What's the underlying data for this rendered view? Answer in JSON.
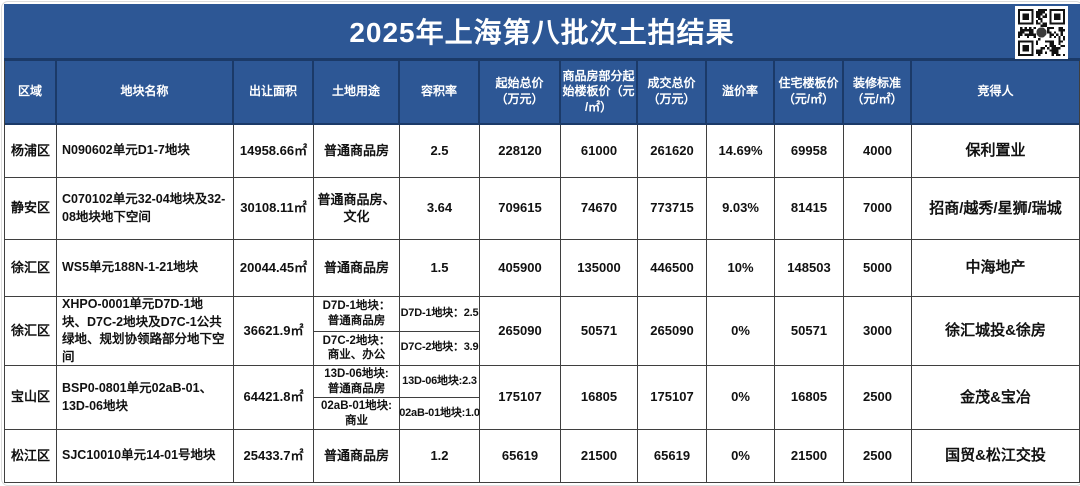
{
  "title": "2025年上海第八批次土拍结果",
  "colors": {
    "header_blue": "#2d5795",
    "divider_navy": "#1b3a68",
    "grid_gray": "#3f3f3f",
    "text_black": "#111111"
  },
  "table": {
    "columns": [
      {
        "label": "区域"
      },
      {
        "label": "地块名称"
      },
      {
        "label": "出让面积"
      },
      {
        "label": "土地用途"
      },
      {
        "label": "容积率"
      },
      {
        "label": "起始总价\n（万元）"
      },
      {
        "label": "商品房部分起\n始楼板价（元\n/㎡）"
      },
      {
        "label": "成交总价\n（万元）"
      },
      {
        "label": "溢价率"
      },
      {
        "label": "住宅楼板价\n（元/㎡）"
      },
      {
        "label": "装修标准\n（元/㎡）"
      },
      {
        "label": "竞得人"
      }
    ],
    "rows": [
      {
        "region": "杨浦区",
        "name": "N090602单元D1-7地块",
        "area": "14958.66㎡",
        "use": [
          "普通商品房"
        ],
        "far": [
          "2.5"
        ],
        "start_total": "228120",
        "start_floor": "61000",
        "deal_total": "261620",
        "premium": "14.69%",
        "res_floor": "69958",
        "decor": "4000",
        "winner": "保利置业"
      },
      {
        "region": "静安区",
        "name": "C070102单元32-04地块及32-08地块地下空间",
        "area": "30108.11㎡",
        "use": [
          "普通商品房、\n文化"
        ],
        "far": [
          "3.64"
        ],
        "start_total": "709615",
        "start_floor": "74670",
        "deal_total": "773715",
        "premium": "9.03%",
        "res_floor": "81415",
        "decor": "7000",
        "winner": "招商/越秀/星狮/瑞城"
      },
      {
        "region": "徐汇区",
        "name": "WS5单元188N-1-21地块",
        "area": "20044.45㎡",
        "use": [
          "普通商品房"
        ],
        "far": [
          "1.5"
        ],
        "start_total": "405900",
        "start_floor": "135000",
        "deal_total": "446500",
        "premium": "10%",
        "res_floor": "148503",
        "decor": "5000",
        "winner": "中海地产"
      },
      {
        "region": "徐汇区",
        "name": "XHPO-0001单元D7D-1地块、D7C-2地块及D7C-1公共绿地、规划协领路部分地下空间",
        "area": "36621.9㎡",
        "use": [
          "D7D-1地块：\n普通商品房",
          "D7C-2地块：\n商业、办公"
        ],
        "far": [
          "D7D-1地块：2.5",
          "D7C-2地块：3.9"
        ],
        "start_total": "265090",
        "start_floor": "50571",
        "deal_total": "265090",
        "premium": "0%",
        "res_floor": "50571",
        "decor": "3000",
        "winner": "徐汇城投&徐房"
      },
      {
        "region": "宝山区",
        "name": "BSP0-0801单元02aB-01、13D-06地块",
        "area": "64421.8㎡",
        "use": [
          "13D-06地块:\n普通商品房",
          "02aB-01地块:\n商业"
        ],
        "far": [
          "13D-06地块:2.3",
          "02aB-01地块:1.0"
        ],
        "start_total": "175107",
        "start_floor": "16805",
        "deal_total": "175107",
        "premium": "0%",
        "res_floor": "16805",
        "decor": "2500",
        "winner": "金茂&宝冶"
      },
      {
        "region": "松江区",
        "name": "SJC10010单元14-01号地块",
        "area": "25433.7㎡",
        "use": [
          "普通商品房"
        ],
        "far": [
          "1.2"
        ],
        "start_total": "65619",
        "start_floor": "21500",
        "deal_total": "65619",
        "premium": "0%",
        "res_floor": "21500",
        "decor": "2500",
        "winner": "国贸&松江交投"
      }
    ]
  }
}
